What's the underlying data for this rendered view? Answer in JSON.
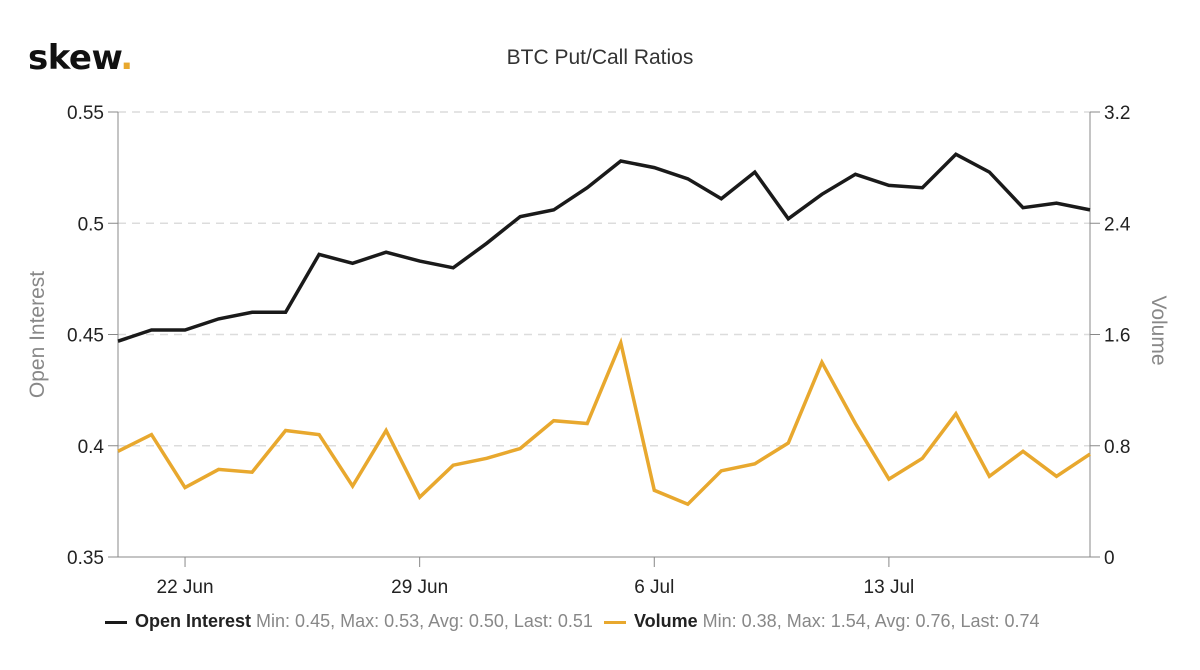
{
  "logo": {
    "text": "skew",
    "dot": "."
  },
  "chart_data": {
    "type": "line",
    "title": "BTC Put/Call Ratios",
    "x": [
      "20 Jun",
      "21 Jun",
      "22 Jun",
      "23 Jun",
      "24 Jun",
      "25 Jun",
      "26 Jun",
      "27 Jun",
      "28 Jun",
      "29 Jun",
      "30 Jun",
      "1 Jul",
      "2 Jul",
      "3 Jul",
      "4 Jul",
      "5 Jul",
      "6 Jul",
      "7 Jul",
      "8 Jul",
      "9 Jul",
      "10 Jul",
      "11 Jul",
      "12 Jul",
      "13 Jul",
      "14 Jul",
      "15 Jul",
      "16 Jul",
      "17 Jul",
      "18 Jul",
      "19 Jul"
    ],
    "x_ticks": [
      "22 Jun",
      "29 Jun",
      "6 Jul",
      "13 Jul"
    ],
    "y_left": {
      "label": "Open Interest",
      "ticks": [
        "0.55",
        "0.5",
        "0.45",
        "0.4",
        "0.35"
      ],
      "range": [
        0.35,
        0.55
      ]
    },
    "y_right": {
      "label": "Volume",
      "ticks": [
        "3.2",
        "2.4",
        "1.6",
        "0.8",
        "0"
      ],
      "range": [
        0,
        3.2
      ]
    },
    "grid": "horizontal dashed",
    "legend_position": "bottom",
    "series": [
      {
        "name": "Open Interest",
        "axis": "left",
        "color": "#1a1a1a",
        "values": [
          0.447,
          0.452,
          0.452,
          0.457,
          0.46,
          0.46,
          0.486,
          0.482,
          0.487,
          0.483,
          0.48,
          0.491,
          0.503,
          0.506,
          0.516,
          0.528,
          0.525,
          0.52,
          0.511,
          0.523,
          0.502,
          0.513,
          0.522,
          0.517,
          0.516,
          0.531,
          0.523,
          0.507,
          0.509,
          0.506
        ],
        "stats": "Min: 0.45, Max: 0.53, Avg: 0.50, Last: 0.51"
      },
      {
        "name": "Volume",
        "axis": "right",
        "color": "#e8a82e",
        "values": [
          0.76,
          0.88,
          0.5,
          0.63,
          0.61,
          0.91,
          0.88,
          0.51,
          0.91,
          0.43,
          0.66,
          0.71,
          0.78,
          0.98,
          0.96,
          1.54,
          0.48,
          0.38,
          0.62,
          0.67,
          0.82,
          1.4,
          0.96,
          0.56,
          0.71,
          1.03,
          0.58,
          0.76,
          0.58,
          0.74
        ],
        "stats": "Min: 0.38, Max: 1.54, Avg: 0.76, Last: 0.74"
      }
    ]
  }
}
